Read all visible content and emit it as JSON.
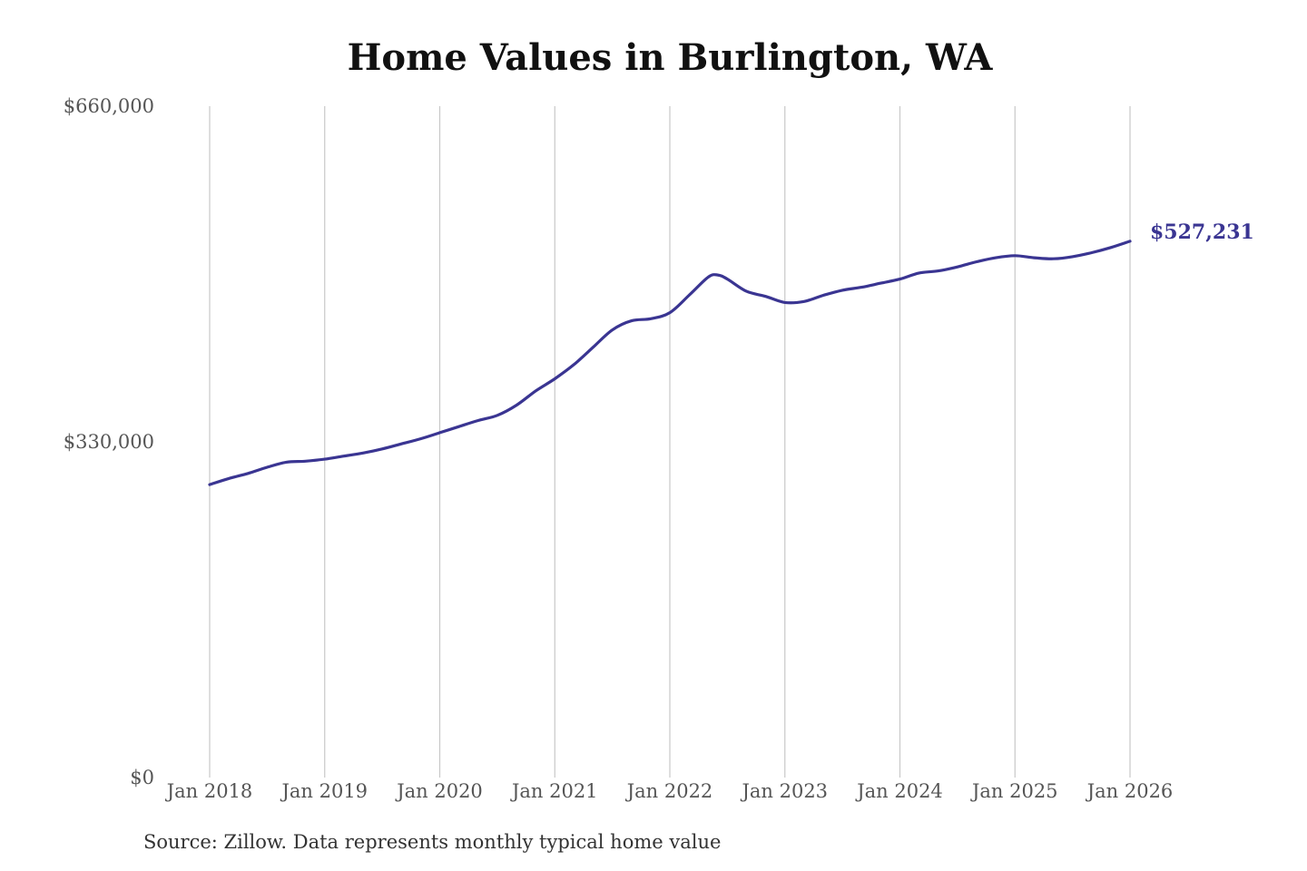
{
  "chart_data": {
    "type": "line",
    "title": "Home Values in Burlington, WA",
    "xlabel": "",
    "ylabel": "",
    "ylim": [
      0,
      660000
    ],
    "yticks": [
      0,
      330000,
      660000
    ],
    "ytick_labels": [
      "$0",
      "$330,000",
      "$660,000"
    ],
    "xlim": [
      "2018-01",
      "2026-01"
    ],
    "xtick_labels": [
      "Jan 2018",
      "Jan 2019",
      "Jan 2020",
      "Jan 2021",
      "Jan 2022",
      "Jan 2023",
      "Jan 2024",
      "Jan 2025",
      "Jan 2026"
    ],
    "grid": "vertical",
    "line_color": "#3a3592",
    "end_label": "$527,231",
    "series": [
      {
        "x": [
          "2018-01",
          "2018-03",
          "2018-05",
          "2018-07",
          "2018-09",
          "2018-11",
          "2019-01",
          "2019-03",
          "2019-05",
          "2019-07",
          "2019-09",
          "2019-11",
          "2020-01",
          "2020-03",
          "2020-05",
          "2020-07",
          "2020-09",
          "2020-11",
          "2021-01",
          "2021-03",
          "2021-05",
          "2021-07",
          "2021-09",
          "2021-11",
          "2022-01",
          "2022-03",
          "2022-05",
          "2022-06",
          "2022-07",
          "2022-09",
          "2022-11",
          "2023-01",
          "2023-03",
          "2023-05",
          "2023-07",
          "2023-09",
          "2023-11",
          "2024-01",
          "2024-03",
          "2024-05",
          "2024-07",
          "2024-09",
          "2024-11",
          "2025-01",
          "2025-03",
          "2025-05",
          "2025-07",
          "2025-09",
          "2025-11",
          "2026-01"
        ],
        "values": [
          288000,
          294000,
          299000,
          305000,
          310000,
          311000,
          313000,
          316000,
          319000,
          323000,
          328000,
          333000,
          339000,
          345000,
          351000,
          356000,
          366000,
          380000,
          392000,
          406000,
          423000,
          440000,
          449000,
          451000,
          457000,
          474000,
          492000,
          494000,
          490000,
          478000,
          473000,
          467000,
          468000,
          474000,
          479000,
          482000,
          486000,
          490000,
          496000,
          498000,
          502000,
          507000,
          511000,
          513000,
          511000,
          510000,
          512000,
          516000,
          521000,
          527231
        ]
      }
    ]
  },
  "source_note": "Source: Zillow. Data represents monthly typical home value"
}
